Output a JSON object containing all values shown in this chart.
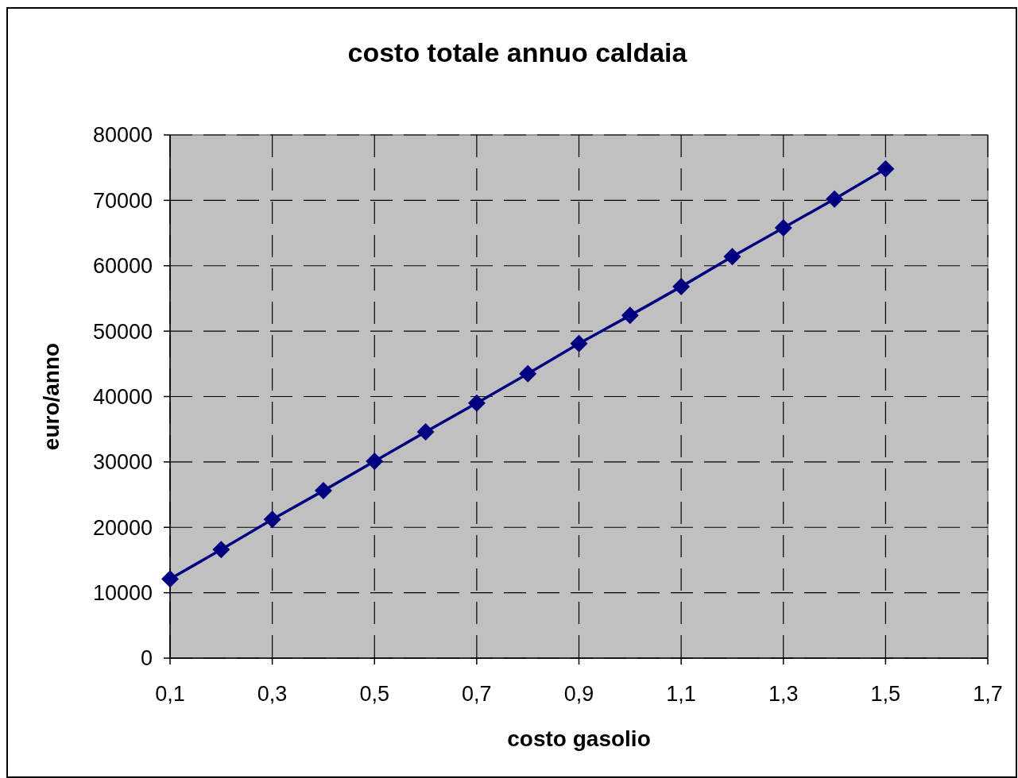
{
  "chart_data": {
    "type": "line",
    "title": "costo totale annuo caldaia",
    "xlabel": "costo gasolio",
    "ylabel": "euro/anno",
    "x": [
      0.1,
      0.2,
      0.3,
      0.4,
      0.5,
      0.6,
      0.7,
      0.8,
      0.9,
      1.0,
      1.1,
      1.2,
      1.3,
      1.4,
      1.5
    ],
    "series": [
      {
        "color": "#000080",
        "values": [
          12100,
          16600,
          21200,
          25600,
          30100,
          34600,
          39000,
          43500,
          48100,
          52400,
          56800,
          61400,
          65800,
          70200,
          74800
        ]
      }
    ],
    "xlim": [
      0.1,
      1.7
    ],
    "xticks": [
      {
        "value": 0.1,
        "label": "0,1"
      },
      {
        "value": 0.3,
        "label": "0,3"
      },
      {
        "value": 0.5,
        "label": "0,5"
      },
      {
        "value": 0.7,
        "label": "0,7"
      },
      {
        "value": 0.9,
        "label": "0,9"
      },
      {
        "value": 1.1,
        "label": "1,1"
      },
      {
        "value": 1.3,
        "label": "1,3"
      },
      {
        "value": 1.5,
        "label": "1,5"
      },
      {
        "value": 1.7,
        "label": "1,7"
      }
    ],
    "ylim": [
      0,
      80000
    ],
    "yticks": [
      0,
      10000,
      20000,
      30000,
      40000,
      50000,
      60000,
      70000,
      80000
    ],
    "grid": true,
    "marker": "diamond",
    "line_style": "solid"
  }
}
